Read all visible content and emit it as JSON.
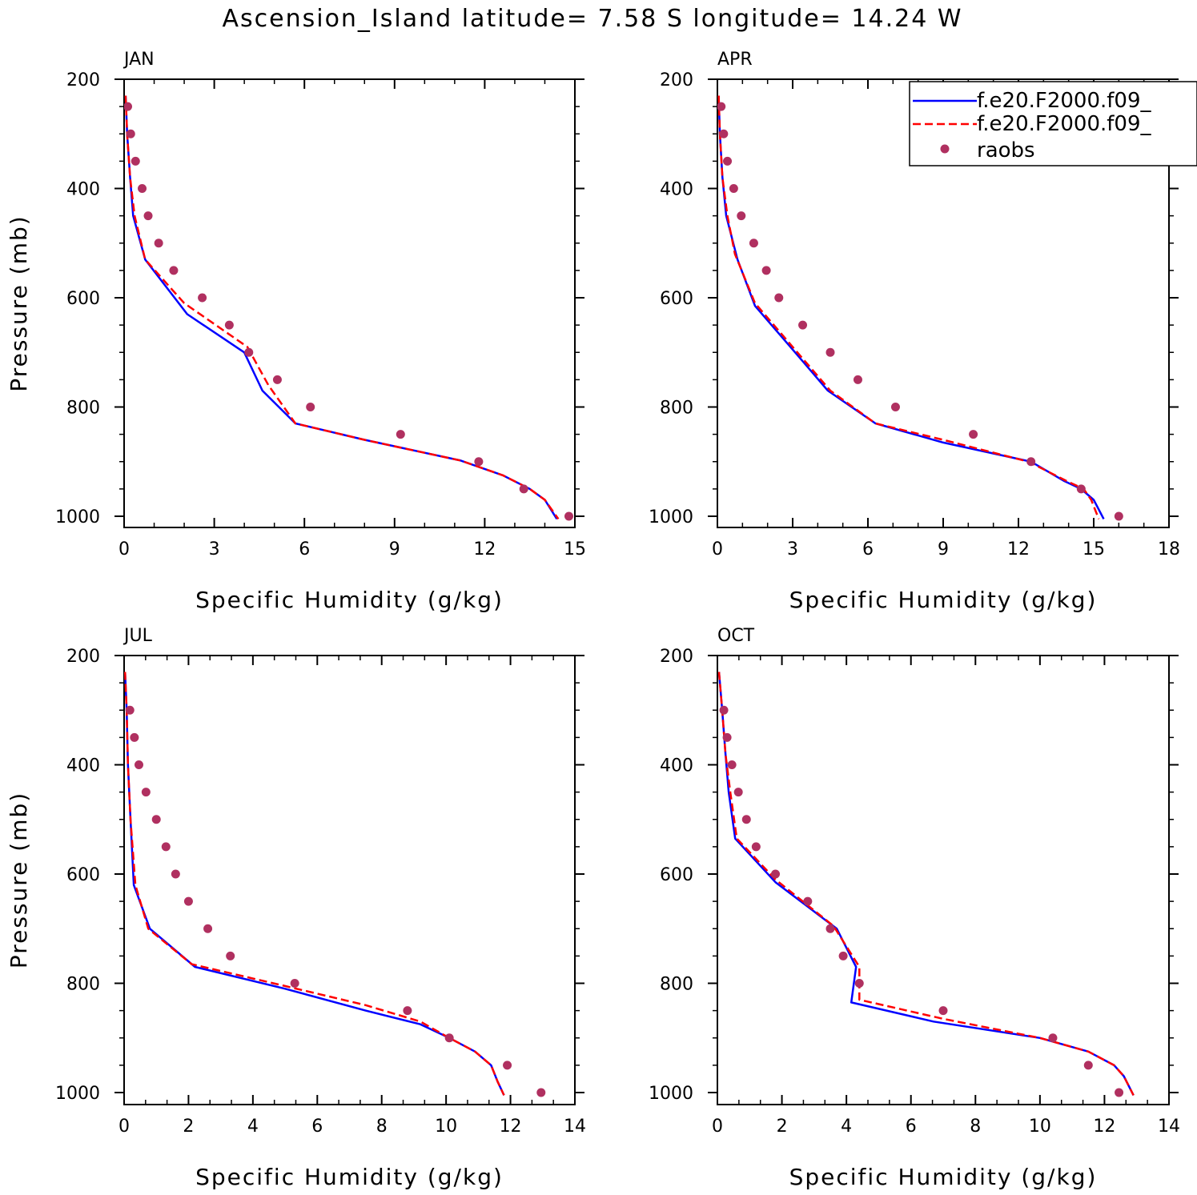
{
  "title": "Ascension_Island  latitude= 7.58 S longitude= 14.24 W",
  "colors": {
    "model1": "#0000ff",
    "model2": "#ff0000",
    "raobs": "#b03060",
    "axis": "#000000"
  },
  "legend": {
    "placement": "top-right",
    "items": [
      {
        "label": "f.e20.F2000.f09_",
        "style": "solid",
        "color": "#0000ff"
      },
      {
        "label": "f.e20.F2000.f09_",
        "style": "dashed",
        "color": "#ff0000"
      },
      {
        "label": "raobs",
        "style": "marker",
        "color": "#b03060"
      }
    ]
  },
  "chart_data": [
    {
      "type": "line",
      "title": "JAN",
      "xlabel": "Specific Humidity (g/kg)",
      "ylabel": "Pressure (mb)",
      "xlim": [
        0,
        15
      ],
      "ylim": [
        1000,
        200
      ],
      "xticks": [
        0,
        3,
        6,
        9,
        12,
        15
      ],
      "yticks": [
        200,
        400,
        600,
        800,
        1000
      ],
      "series": [
        {
          "style": "solid",
          "color": "#0000ff",
          "x": [
            0.05,
            0.1,
            0.2,
            0.3,
            0.7,
            2.1,
            4.0,
            4.6,
            5.7,
            8.0,
            11.2,
            12.6,
            13.5,
            14.0,
            14.4
          ],
          "y": [
            230,
            300,
            380,
            450,
            530,
            630,
            700,
            770,
            830,
            860,
            898,
            925,
            950,
            970,
            1005
          ]
        },
        {
          "style": "dashed",
          "color": "#ff0000",
          "x": [
            0.05,
            0.1,
            0.2,
            0.35,
            0.7,
            2.0,
            4.1,
            4.8,
            5.7,
            8.0,
            11.2,
            12.6,
            13.5,
            14.0,
            14.45
          ],
          "y": [
            230,
            300,
            380,
            450,
            530,
            610,
            690,
            760,
            830,
            860,
            898,
            925,
            950,
            970,
            1005
          ]
        },
        {
          "style": "marker",
          "color": "#b03060",
          "x": [
            0.12,
            0.22,
            0.38,
            0.6,
            0.8,
            1.15,
            1.65,
            2.6,
            3.5,
            4.15,
            5.1,
            6.2,
            9.2,
            11.8,
            13.3,
            14.8
          ],
          "y": [
            250,
            300,
            350,
            400,
            450,
            500,
            550,
            600,
            650,
            700,
            750,
            800,
            850,
            900,
            950,
            1000
          ]
        }
      ]
    },
    {
      "type": "line",
      "title": "APR",
      "xlabel": "Specific Humidity (g/kg)",
      "ylabel": "",
      "xlim": [
        0,
        18
      ],
      "ylim": [
        1000,
        200
      ],
      "xticks": [
        0,
        3,
        6,
        9,
        12,
        15,
        18
      ],
      "yticks": [
        200,
        400,
        600,
        800,
        1000
      ],
      "series": [
        {
          "style": "solid",
          "color": "#0000ff",
          "x": [
            0.05,
            0.1,
            0.2,
            0.35,
            0.8,
            1.5,
            3.1,
            4.4,
            6.3,
            9.0,
            12.5,
            13.8,
            14.5,
            15.0,
            15.4
          ],
          "y": [
            230,
            300,
            380,
            450,
            530,
            615,
            700,
            770,
            830,
            865,
            900,
            935,
            950,
            970,
            1005
          ]
        },
        {
          "style": "dashed",
          "color": "#ff0000",
          "x": [
            0.05,
            0.1,
            0.2,
            0.4,
            0.7,
            1.5,
            3.0,
            4.5,
            6.3,
            9.0,
            12.4,
            13.9,
            14.6,
            14.9,
            15.2
          ],
          "y": [
            230,
            300,
            380,
            450,
            520,
            610,
            690,
            770,
            830,
            860,
            900,
            935,
            950,
            970,
            1005
          ]
        },
        {
          "style": "marker",
          "color": "#b03060",
          "x": [
            0.15,
            0.25,
            0.4,
            0.65,
            0.95,
            1.45,
            1.95,
            2.45,
            3.4,
            4.5,
            5.6,
            7.1,
            10.2,
            12.5,
            14.5,
            16.0
          ],
          "y": [
            250,
            300,
            350,
            400,
            450,
            500,
            550,
            600,
            650,
            700,
            750,
            800,
            850,
            900,
            950,
            1000
          ]
        }
      ]
    },
    {
      "type": "line",
      "title": "JUL",
      "xlabel": "Specific Humidity (g/kg)",
      "ylabel": "Pressure (mb)",
      "xlim": [
        0,
        14
      ],
      "ylim": [
        1000,
        200
      ],
      "xticks": [
        0,
        2,
        4,
        6,
        8,
        10,
        12,
        14
      ],
      "yticks": [
        200,
        400,
        600,
        800,
        1000
      ],
      "series": [
        {
          "style": "solid",
          "color": "#0000ff",
          "x": [
            0.03,
            0.08,
            0.12,
            0.2,
            0.3,
            0.8,
            2.2,
            5.0,
            7.5,
            9.2,
            10.1,
            10.9,
            11.4,
            11.6,
            11.8
          ],
          "y": [
            230,
            300,
            400,
            500,
            620,
            700,
            770,
            810,
            850,
            875,
            900,
            925,
            950,
            980,
            1005
          ]
        },
        {
          "style": "dashed",
          "color": "#ff0000",
          "x": [
            0.03,
            0.08,
            0.12,
            0.2,
            0.35,
            0.75,
            2.1,
            5.0,
            7.5,
            9.2,
            10.1,
            10.9,
            11.4,
            11.6,
            11.8
          ],
          "y": [
            230,
            300,
            400,
            500,
            620,
            700,
            765,
            805,
            840,
            870,
            900,
            925,
            950,
            980,
            1005
          ]
        },
        {
          "style": "marker",
          "color": "#b03060",
          "x": [
            0.18,
            0.32,
            0.46,
            0.68,
            1.0,
            1.3,
            1.6,
            2.0,
            2.6,
            3.3,
            5.3,
            8.8,
            10.1,
            11.9,
            12.95
          ],
          "y": [
            300,
            350,
            400,
            450,
            500,
            550,
            600,
            650,
            700,
            750,
            800,
            850,
            900,
            950,
            1000
          ]
        }
      ]
    },
    {
      "type": "line",
      "title": "OCT",
      "xlabel": "Specific Humidity (g/kg)",
      "ylabel": "",
      "xlim": [
        0,
        14
      ],
      "ylim": [
        1000,
        200
      ],
      "xticks": [
        0,
        2,
        4,
        6,
        8,
        10,
        12,
        14
      ],
      "yticks": [
        200,
        400,
        600,
        800,
        1000
      ],
      "series": [
        {
          "style": "solid",
          "color": "#0000ff",
          "x": [
            0.05,
            0.15,
            0.25,
            0.35,
            0.55,
            1.8,
            3.7,
            4.3,
            4.15,
            6.7,
            10.0,
            11.5,
            12.3,
            12.6,
            12.9
          ],
          "y": [
            230,
            300,
            380,
            450,
            535,
            615,
            700,
            770,
            835,
            870,
            900,
            925,
            950,
            970,
            1005
          ]
        },
        {
          "style": "dashed",
          "color": "#ff0000",
          "x": [
            0.05,
            0.15,
            0.25,
            0.4,
            0.6,
            1.8,
            3.6,
            4.4,
            4.4,
            7.0,
            10.0,
            11.5,
            12.3,
            12.6,
            12.9
          ],
          "y": [
            230,
            300,
            380,
            450,
            535,
            610,
            695,
            770,
            830,
            865,
            900,
            925,
            950,
            970,
            1005
          ]
        },
        {
          "style": "marker",
          "color": "#b03060",
          "x": [
            0.2,
            0.3,
            0.45,
            0.65,
            0.9,
            1.2,
            1.8,
            2.8,
            3.5,
            3.9,
            4.4,
            7.0,
            10.4,
            11.5,
            12.45
          ],
          "y": [
            300,
            350,
            400,
            450,
            500,
            550,
            600,
            650,
            700,
            750,
            800,
            850,
            900,
            950,
            1000
          ]
        }
      ]
    }
  ]
}
